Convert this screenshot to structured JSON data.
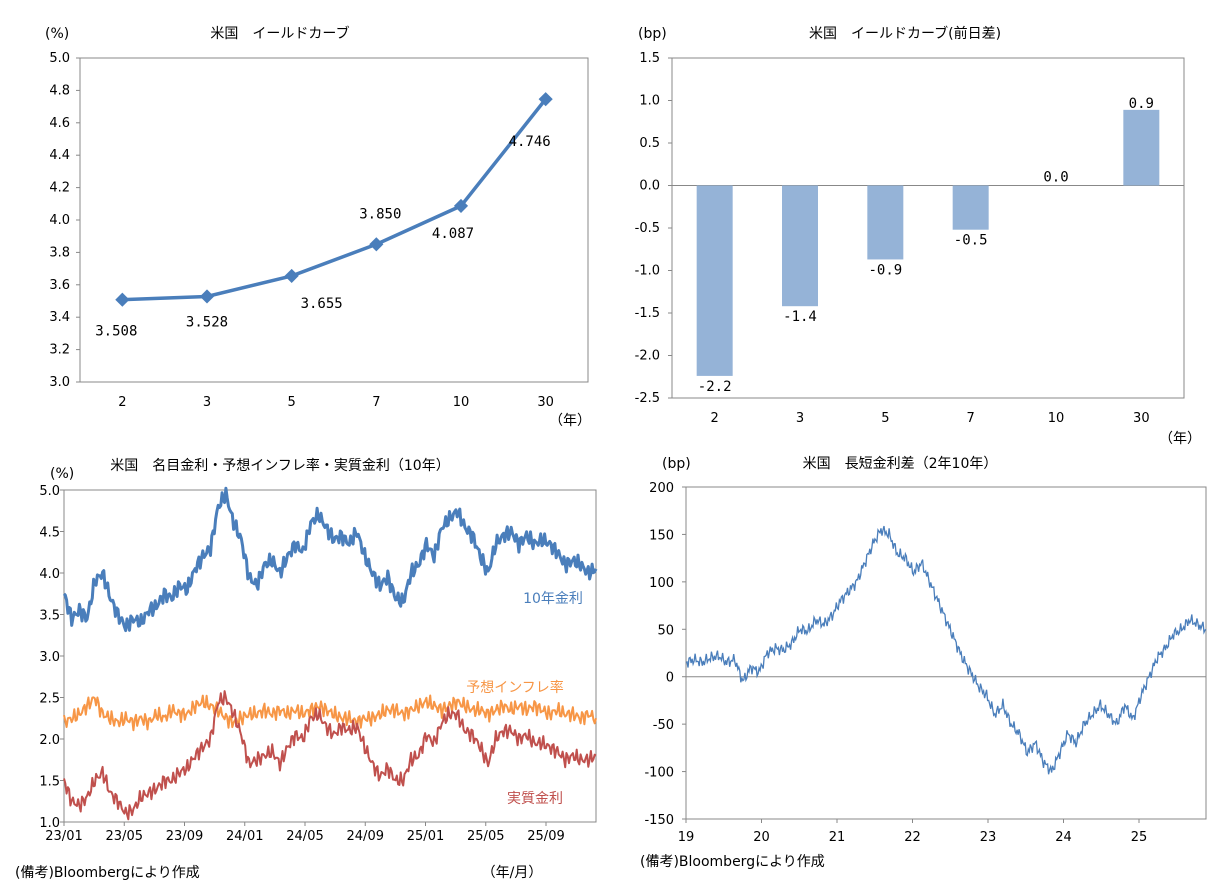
{
  "chart_data": [
    {
      "type": "line",
      "title": "米国　イールドカーブ",
      "ylabel": "(%)",
      "xlabel": "（年）",
      "categories": [
        "2",
        "3",
        "5",
        "7",
        "10",
        "30"
      ],
      "values": [
        3.508,
        3.528,
        3.655,
        3.85,
        4.087,
        4.746
      ],
      "data_labels": [
        "3.508",
        "3.528",
        "3.655",
        "3.850",
        "4.087",
        "4.746"
      ],
      "ylim": [
        3.0,
        5.0
      ],
      "yticks": [
        "3.0",
        "3.2",
        "3.4",
        "3.6",
        "3.8",
        "4.0",
        "4.2",
        "4.4",
        "4.6",
        "4.8",
        "5.0"
      ],
      "color": "#4a7ebb"
    },
    {
      "type": "bar",
      "title": "米国　イールドカーブ(前日差)",
      "ylabel": "(bp)",
      "xlabel": "（年）",
      "categories": [
        "2",
        "3",
        "5",
        "7",
        "10",
        "30"
      ],
      "values": [
        -2.24,
        -1.42,
        -0.87,
        -0.52,
        0.0,
        0.89
      ],
      "data_labels": [
        "-2.2",
        "-1.4",
        "-0.9",
        "-0.5",
        "0.0",
        "0.9"
      ],
      "ylim": [
        -2.5,
        1.5
      ],
      "yticks": [
        "-2.5",
        "-2.0",
        "-1.5",
        "-1.0",
        "-0.5",
        "0.0",
        "0.5",
        "1.0",
        "1.5"
      ],
      "color": "#95b3d7"
    },
    {
      "type": "line",
      "title": "米国　名目金利・予想インフレ率・実質金利（10年）",
      "ylabel": "(%)",
      "xlabel": "（年/月）",
      "ylim": [
        1.0,
        5.0
      ],
      "yticks": [
        "1.0",
        "1.5",
        "2.0",
        "2.5",
        "3.0",
        "3.5",
        "4.0",
        "4.5",
        "5.0"
      ],
      "xticks": [
        "23/01",
        "23/05",
        "23/09",
        "24/01",
        "24/05",
        "24/09",
        "25/01",
        "25/05",
        "25/09"
      ],
      "series": [
        {
          "name": "10年金利",
          "color": "#4a7ebb",
          "values": [
            3.75,
            3.45,
            3.55,
            3.45,
            3.9,
            4.0,
            3.7,
            3.5,
            3.35,
            3.45,
            3.4,
            3.55,
            3.6,
            3.75,
            3.7,
            3.85,
            3.8,
            4.05,
            4.2,
            4.3,
            4.8,
            4.95,
            4.6,
            4.4,
            3.95,
            3.85,
            4.1,
            4.15,
            4.0,
            4.2,
            4.35,
            4.25,
            4.6,
            4.7,
            4.55,
            4.4,
            4.45,
            4.35,
            4.5,
            4.2,
            4.0,
            3.85,
            3.95,
            3.7,
            3.65,
            4.0,
            4.1,
            4.35,
            4.2,
            4.55,
            4.65,
            4.75,
            4.55,
            4.45,
            4.2,
            4.0,
            4.35,
            4.45,
            4.5,
            4.35,
            4.45,
            4.35,
            4.4,
            4.35,
            4.25,
            4.1,
            4.15,
            4.1,
            4.0,
            4.05
          ]
        },
        {
          "name": "予想インフレ率",
          "color": "#f79646",
          "values": [
            2.2,
            2.25,
            2.3,
            2.4,
            2.5,
            2.3,
            2.25,
            2.2,
            2.25,
            2.2,
            2.25,
            2.2,
            2.3,
            2.25,
            2.35,
            2.3,
            2.3,
            2.4,
            2.45,
            2.4,
            2.35,
            2.25,
            2.2,
            2.25,
            2.3,
            2.3,
            2.35,
            2.3,
            2.35,
            2.3,
            2.35,
            2.3,
            2.35,
            2.4,
            2.35,
            2.3,
            2.25,
            2.25,
            2.2,
            2.25,
            2.25,
            2.3,
            2.35,
            2.35,
            2.3,
            2.35,
            2.4,
            2.45,
            2.4,
            2.35,
            2.4,
            2.45,
            2.4,
            2.35,
            2.35,
            2.3,
            2.35,
            2.4,
            2.35,
            2.4,
            2.35,
            2.4,
            2.35,
            2.3,
            2.35,
            2.3,
            2.3,
            2.25,
            2.3,
            2.25
          ]
        },
        {
          "name": "実質金利",
          "color": "#c0504d",
          "values": [
            1.5,
            1.25,
            1.2,
            1.3,
            1.5,
            1.6,
            1.35,
            1.25,
            1.1,
            1.15,
            1.3,
            1.35,
            1.4,
            1.5,
            1.5,
            1.6,
            1.65,
            1.8,
            1.9,
            2.0,
            2.45,
            2.5,
            2.3,
            2.05,
            1.7,
            1.75,
            1.8,
            1.85,
            1.7,
            1.9,
            2.05,
            2.0,
            2.25,
            2.3,
            2.15,
            2.05,
            2.15,
            2.1,
            2.15,
            1.9,
            1.7,
            1.55,
            1.65,
            1.5,
            1.5,
            1.75,
            1.8,
            2.05,
            1.95,
            2.2,
            2.3,
            2.3,
            2.1,
            2.05,
            1.9,
            1.7,
            2.0,
            2.1,
            2.1,
            2.0,
            2.05,
            1.95,
            1.95,
            1.9,
            1.85,
            1.75,
            1.8,
            1.75,
            1.75,
            1.8
          ]
        }
      ]
    },
    {
      "type": "line",
      "title": "米国　長短金利差（2年10年）",
      "ylabel": "(bp)",
      "ylim": [
        -150,
        200
      ],
      "yticks": [
        "-150",
        "-100",
        "-50",
        "0",
        "50",
        "100",
        "150",
        "200"
      ],
      "xticks": [
        "19",
        "20",
        "21",
        "22",
        "23",
        "24",
        "25"
      ],
      "series": [
        {
          "name": "長短金利差",
          "color": "#4a7ebb",
          "values": [
            15,
            18,
            15,
            20,
            22,
            15,
            18,
            -5,
            10,
            5,
            25,
            30,
            28,
            35,
            50,
            48,
            60,
            55,
            65,
            80,
            90,
            100,
            120,
            140,
            155,
            150,
            130,
            125,
            110,
            120,
            100,
            80,
            60,
            40,
            20,
            5,
            -10,
            -20,
            -40,
            -30,
            -50,
            -60,
            -80,
            -70,
            -90,
            -100,
            -80,
            -60,
            -70,
            -50,
            -40,
            -30,
            -40,
            -50,
            -30,
            -45,
            -20,
            0,
            20,
            30,
            45,
            50,
            60,
            55,
            50
          ]
        }
      ]
    }
  ],
  "notes": {
    "left": "(備考)Bloombergにより作成",
    "right": "(備考)Bloombergにより作成"
  },
  "legend_labels": {
    "nominal": "10年金利",
    "inflation": "予想インフレ率",
    "real": "実質金利"
  }
}
